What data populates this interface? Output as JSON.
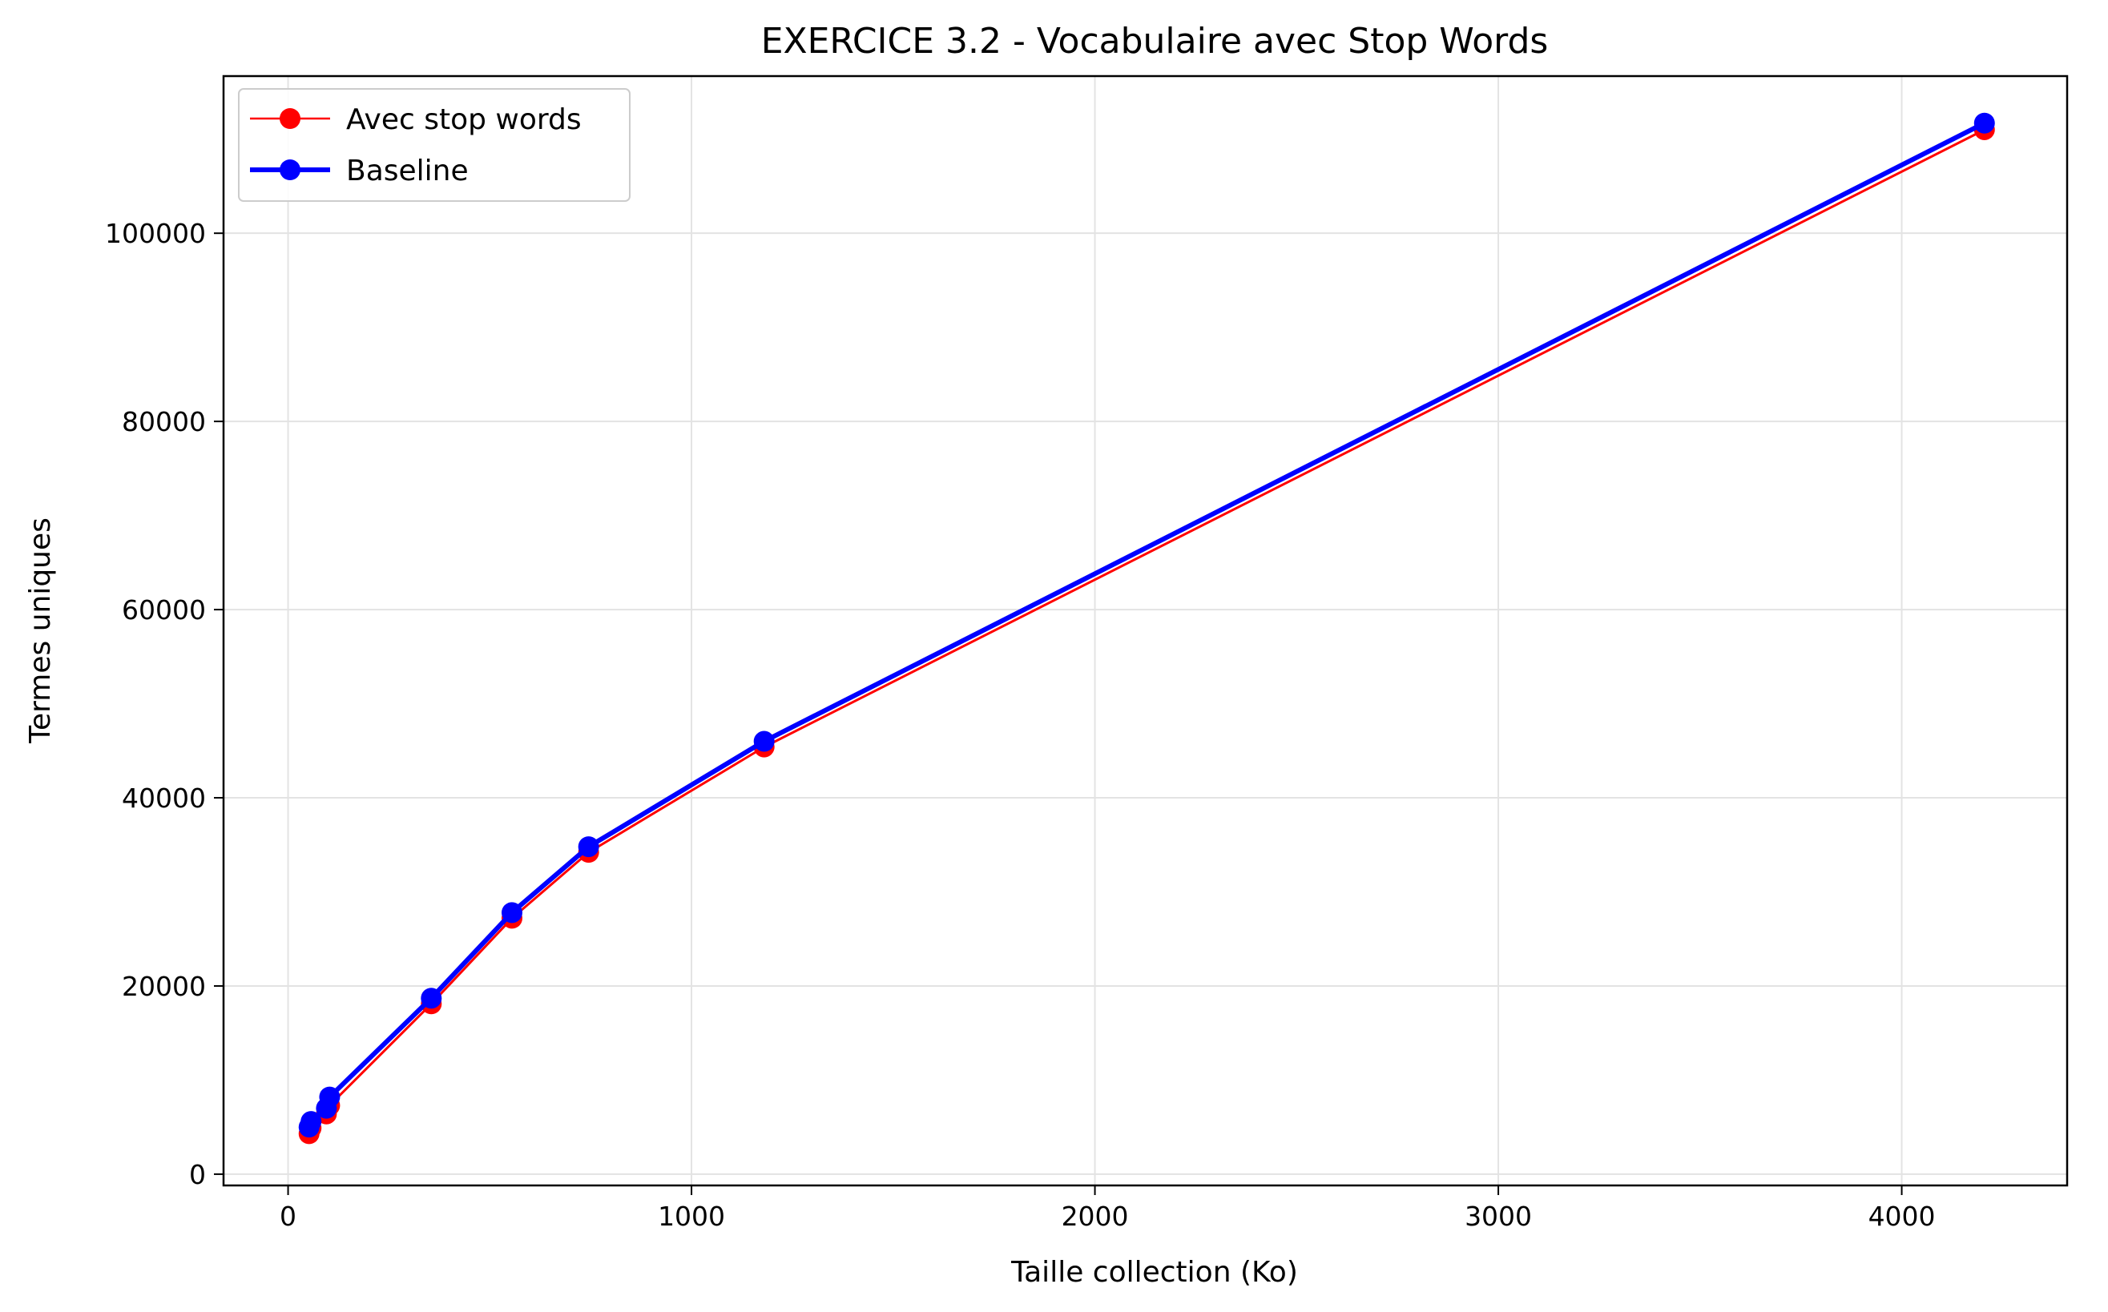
{
  "chart_data": {
    "type": "line",
    "title": "EXERCICE 3.2 - Vocabulaire avec Stop Words",
    "xlabel": "Taille collection (Ko)",
    "ylabel": "Termes uniques",
    "xlim": [
      -160,
      4410
    ],
    "ylim": [
      -1200,
      116700
    ],
    "xticks": [
      0,
      1000,
      2000,
      3000,
      4000
    ],
    "xtick_labels": [
      "0",
      "1000",
      "2000",
      "3000",
      "4000"
    ],
    "yticks": [
      0,
      20000,
      40000,
      60000,
      80000,
      100000
    ],
    "ytick_labels": [
      "0",
      "20000",
      "40000",
      "60000",
      "80000",
      "100000"
    ],
    "grid": true,
    "legend_position": "upper-left",
    "series": [
      {
        "name": "Avec stop words",
        "color": "#ff0000",
        "marker": "circle",
        "x": [
          52,
          57,
          95,
          103,
          355,
          555,
          745,
          1180,
          4205
        ],
        "y": [
          4300,
          4900,
          6400,
          7300,
          18100,
          27200,
          34200,
          45400,
          111000
        ]
      },
      {
        "name": "Baseline",
        "color": "#0000ff",
        "marker": "circle",
        "x": [
          52,
          57,
          95,
          103,
          355,
          555,
          745,
          1180,
          4205
        ],
        "y": [
          5000,
          5600,
          7000,
          8200,
          18700,
          27800,
          34800,
          46000,
          111700
        ]
      }
    ]
  }
}
